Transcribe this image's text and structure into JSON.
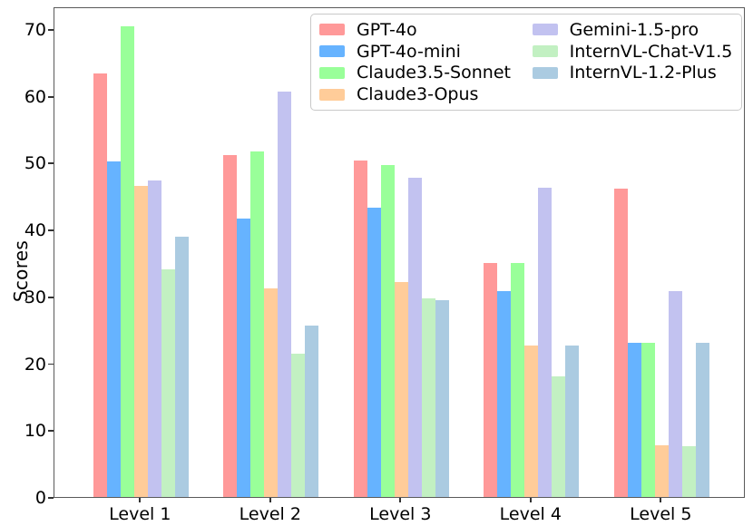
{
  "chart_data": {
    "type": "bar",
    "title": "",
    "xlabel": "",
    "ylabel": "Scores",
    "categories": [
      "Level 1",
      "Level 2",
      "Level 3",
      "Level 4",
      "Level 5"
    ],
    "series": [
      {
        "name": "GPT-4o",
        "color": "#FF9999",
        "values": [
          63.4,
          51.1,
          50.3,
          35.0,
          46.1
        ]
      },
      {
        "name": "GPT-4o-mini",
        "color": "#66B3FF",
        "values": [
          50.2,
          41.7,
          43.3,
          30.8,
          23.1
        ]
      },
      {
        "name": "Claude3.5-Sonnet",
        "color": "#99FF99",
        "values": [
          70.4,
          51.7,
          49.7,
          35.0,
          23.1
        ]
      },
      {
        "name": "Claude3-Opus",
        "color": "#FFCC99",
        "values": [
          46.5,
          31.2,
          32.2,
          22.6,
          7.7
        ]
      },
      {
        "name": "Gemini-1.5-pro",
        "color": "#C2C2F0",
        "values": [
          47.3,
          60.6,
          47.8,
          46.3,
          30.8
        ]
      },
      {
        "name": "InternVL-Chat-V1.5",
        "color": "#C2F0C2",
        "values": [
          34.1,
          21.4,
          29.7,
          18.1,
          7.6
        ]
      },
      {
        "name": "InternVL-1.2-Plus",
        "color": "#ABCBE1",
        "values": [
          38.9,
          25.7,
          29.4,
          22.6,
          23.1
        ]
      }
    ],
    "ylim": [
      0,
      73.4
    ],
    "yticks": [
      0,
      10,
      20,
      30,
      40,
      50,
      60,
      70
    ],
    "grid": false,
    "legend_position": "upper right",
    "legend_columns": 2
  }
}
